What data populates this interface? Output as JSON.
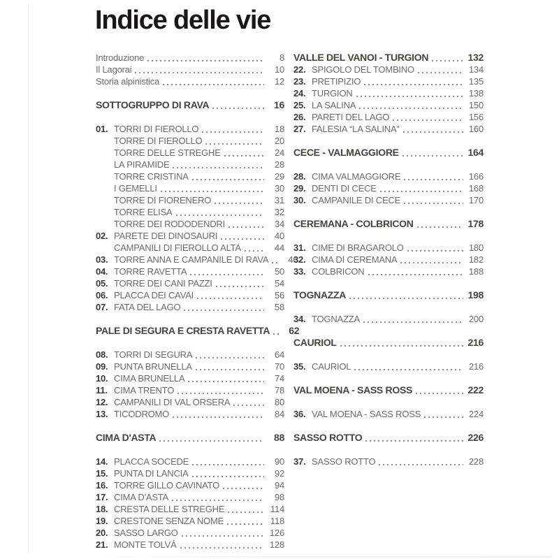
{
  "page": {
    "title": "Indice delle vie",
    "colors": {
      "background": "#ffffff",
      "title": "#191816",
      "section_header": "#45443f",
      "entry_number": "#3a3935",
      "entry_text": "#6c6b67",
      "dot_leader": "#8f8e8a"
    }
  },
  "left_column": {
    "groups": [
      {
        "entries": [
          {
            "type": "plain",
            "label": "Introduzione",
            "page": "8"
          },
          {
            "type": "plain",
            "label": "Il Lagorai",
            "page": "10"
          },
          {
            "type": "plain",
            "label": "Storia alpinistica",
            "page": "12"
          }
        ]
      },
      {
        "header": {
          "label": "SOTTOGRUPPO DI RAVA",
          "page": "16"
        },
        "entries": []
      },
      {
        "entries": [
          {
            "type": "numbered",
            "num": "01.",
            "label": "TORRI DI FIEROLLO",
            "page": "18"
          },
          {
            "type": "sub",
            "label": "TORRE DI FIEROLLO",
            "page": "20"
          },
          {
            "type": "sub",
            "label": "TORRE DELLE STREGHE",
            "page": "24"
          },
          {
            "type": "sub",
            "label": "LA PIRAMIDE",
            "page": "28"
          },
          {
            "type": "sub",
            "label": "TORRE CRISTINA",
            "page": "29"
          },
          {
            "type": "sub",
            "label": "I GEMELLI",
            "page": "30"
          },
          {
            "type": "sub",
            "label": "TORRE DI FIORENERO",
            "page": "31"
          },
          {
            "type": "sub",
            "label": "TORRE ELISA",
            "page": "32"
          },
          {
            "type": "sub",
            "label": "TORRE DEI RODODENDRI",
            "page": "34"
          },
          {
            "type": "numbered",
            "num": "02.",
            "label": "PARETE DEI DINOSAURI",
            "page": "40"
          },
          {
            "type": "sub",
            "label": "CAMPANILI DI FIEROLLO ALTA",
            "page": "44"
          },
          {
            "type": "numbered",
            "num": "03.",
            "label": "TORRE ANNA E CAMPANILE DI RAVA",
            "page": "46"
          },
          {
            "type": "numbered",
            "num": "04.",
            "label": "TORRE RAVETTA",
            "page": "50"
          },
          {
            "type": "numbered",
            "num": "05.",
            "label": "TORRE DEI CANI PAZZI",
            "page": "54"
          },
          {
            "type": "numbered",
            "num": "06.",
            "label": "PLACCA DEI CAVAI",
            "page": "56"
          },
          {
            "type": "numbered",
            "num": "07.",
            "label": "FATA DEL LAGO",
            "page": "58"
          }
        ]
      },
      {
        "header": {
          "label": "PALE DI SEGURA E CRESTA RAVETTA",
          "page": "62"
        },
        "entries": []
      },
      {
        "entries": [
          {
            "type": "numbered",
            "num": "08.",
            "label": "TORRI DI SEGURA",
            "page": "64"
          },
          {
            "type": "numbered",
            "num": "09.",
            "label": "PUNTA BRUNELLA",
            "page": "70"
          },
          {
            "type": "numbered",
            "num": "10.",
            "label": "CIMA BRUNELLA",
            "page": "74"
          },
          {
            "type": "numbered",
            "num": "11.",
            "label": "CIMA TRENTO",
            "page": "78"
          },
          {
            "type": "numbered",
            "num": "12.",
            "label": "CAMPANILI DI VAL ORSERA",
            "page": "80"
          },
          {
            "type": "numbered",
            "num": "13.",
            "label": "TICODROMO",
            "page": "84"
          }
        ]
      },
      {
        "header": {
          "label": "CIMA D'ASTA",
          "page": "88"
        },
        "entries": []
      },
      {
        "entries": [
          {
            "type": "numbered",
            "num": "14.",
            "label": "PLACCA SOCEDE",
            "page": "90"
          },
          {
            "type": "numbered",
            "num": "15.",
            "label": "PUNTA DI LANCIA",
            "page": "92"
          },
          {
            "type": "numbered",
            "num": "16.",
            "label": "TORRE GILLO CAVINATO",
            "page": "94"
          },
          {
            "type": "numbered",
            "num": "17.",
            "label": "CIMA D'ASTA",
            "page": "98"
          },
          {
            "type": "numbered",
            "num": "18.",
            "label": "CRESTA DELLE STREGHE",
            "page": "114"
          },
          {
            "type": "numbered",
            "num": "19.",
            "label": "CRESTONE SENZA NOME",
            "page": "118"
          },
          {
            "type": "numbered",
            "num": "20.",
            "label": "SASSO LARGO",
            "page": "126"
          },
          {
            "type": "numbered",
            "num": "21.",
            "label": "MONTE TOLVÀ",
            "page": "128"
          }
        ]
      }
    ]
  },
  "right_column": {
    "groups": [
      {
        "header": {
          "label": "VALLE DEL VANOI - TURGION",
          "page": "132"
        },
        "entries": [
          {
            "type": "numbered",
            "num": "22.",
            "label": "SPIGOLO DEL TOMBINO",
            "page": "134"
          },
          {
            "type": "numbered",
            "num": "23.",
            "label": "PRETIPIZIO",
            "page": "135"
          },
          {
            "type": "numbered",
            "num": "24.",
            "label": "TURGION",
            "page": "138"
          },
          {
            "type": "numbered",
            "num": "25.",
            "label": "LA SALINA",
            "page": "150"
          },
          {
            "type": "numbered",
            "num": "26.",
            "label": "PARETI DEL LAGO",
            "page": "156"
          },
          {
            "type": "numbered",
            "num": "27.",
            "label": "FALESIA “LA SALINA”",
            "page": "160"
          }
        ]
      },
      {
        "header": {
          "label": "CECE - VALMAGGIORE",
          "page": "164"
        },
        "entries": []
      },
      {
        "entries": [
          {
            "type": "numbered",
            "num": "28.",
            "label": "CIMA VALMAGGIORE",
            "page": "166"
          },
          {
            "type": "numbered",
            "num": "29.",
            "label": "DENTI DI CECE",
            "page": "168"
          },
          {
            "type": "numbered",
            "num": "30.",
            "label": "CAMPANILE DI CECE",
            "page": "170"
          }
        ]
      },
      {
        "header": {
          "label": "CEREMANA - COLBRICON",
          "page": "178"
        },
        "entries": []
      },
      {
        "entries": [
          {
            "type": "numbered",
            "num": "31.",
            "label": "CIME DI BRAGAROLO",
            "page": "180"
          },
          {
            "type": "numbered",
            "num": "32.",
            "label": "CIMA DI CEREMANA",
            "page": "182"
          },
          {
            "type": "numbered",
            "num": "33.",
            "label": "COLBRICON",
            "page": "188"
          }
        ]
      },
      {
        "header": {
          "label": "TOGNAZZA",
          "page": "198"
        },
        "entries": []
      },
      {
        "entries": [
          {
            "type": "numbered",
            "num": "34.",
            "label": "TOGNAZZA",
            "page": "200"
          }
        ]
      },
      {
        "header": {
          "label": "CAURIOL",
          "page": "216"
        },
        "entries": []
      },
      {
        "entries": [
          {
            "type": "numbered",
            "num": "35.",
            "label": "CAURIOL",
            "page": "216"
          }
        ]
      },
      {
        "header": {
          "label": "VAL MOENA - SASS ROSS",
          "page": "222"
        },
        "entries": []
      },
      {
        "entries": [
          {
            "type": "numbered",
            "num": "36.",
            "label": "VAL MOENA - SASS ROSS",
            "page": "224"
          }
        ]
      },
      {
        "header": {
          "label": "SASSO ROTTO",
          "page": "226"
        },
        "entries": []
      },
      {
        "entries": [
          {
            "type": "numbered",
            "num": "37.",
            "label": "SASSO ROTTO",
            "page": "228"
          }
        ]
      }
    ]
  }
}
